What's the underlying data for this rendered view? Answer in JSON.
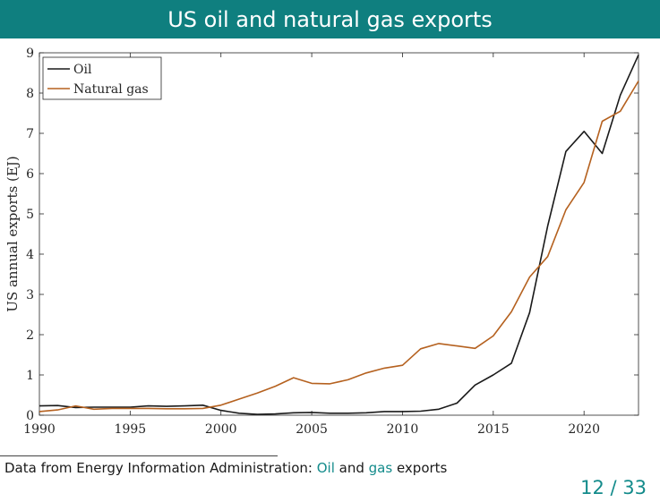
{
  "slide": {
    "title": "US oil and natural gas exports",
    "footnote": {
      "prefix": "Data from Energy Information Administration: ",
      "link_oil": "Oil",
      "middle": " and ",
      "link_gas": "gas",
      "suffix": " exports"
    },
    "page_number": "12 / 33"
  },
  "chart_data": {
    "type": "line",
    "ylabel": "US annual exports (EJ)",
    "xlim": [
      1990,
      2023
    ],
    "ylim": [
      0,
      9
    ],
    "xticks": [
      1990,
      1995,
      2000,
      2005,
      2010,
      2015,
      2020
    ],
    "yticks": [
      0,
      1,
      2,
      3,
      4,
      5,
      6,
      7,
      8,
      9
    ],
    "legend_position": "top-left",
    "grid": false,
    "x": [
      1990,
      1991,
      1992,
      1993,
      1994,
      1995,
      1996,
      1997,
      1998,
      1999,
      2000,
      2001,
      2002,
      2003,
      2004,
      2005,
      2006,
      2007,
      2008,
      2009,
      2010,
      2011,
      2012,
      2013,
      2014,
      2015,
      2016,
      2017,
      2018,
      2019,
      2020,
      2021,
      2022,
      2023
    ],
    "series": [
      {
        "name": "Oil",
        "color": "#1a1a1a",
        "values": [
          0.23,
          0.24,
          0.19,
          0.2,
          0.2,
          0.2,
          0.23,
          0.22,
          0.23,
          0.25,
          0.12,
          0.05,
          0.02,
          0.03,
          0.06,
          0.07,
          0.05,
          0.05,
          0.06,
          0.09,
          0.09,
          0.1,
          0.15,
          0.3,
          0.75,
          1.0,
          1.29,
          2.55,
          4.7,
          6.55,
          7.05,
          6.5,
          7.95,
          8.95
        ]
      },
      {
        "name": "Natural gas",
        "color": "#b5611f",
        "values": [
          0.09,
          0.13,
          0.23,
          0.15,
          0.17,
          0.17,
          0.17,
          0.16,
          0.16,
          0.17,
          0.25,
          0.4,
          0.55,
          0.72,
          0.93,
          0.79,
          0.78,
          0.88,
          1.05,
          1.17,
          1.24,
          1.65,
          1.78,
          1.72,
          1.66,
          1.97,
          2.57,
          3.43,
          3.94,
          5.1,
          5.78,
          7.3,
          7.55,
          8.3
        ]
      }
    ]
  }
}
